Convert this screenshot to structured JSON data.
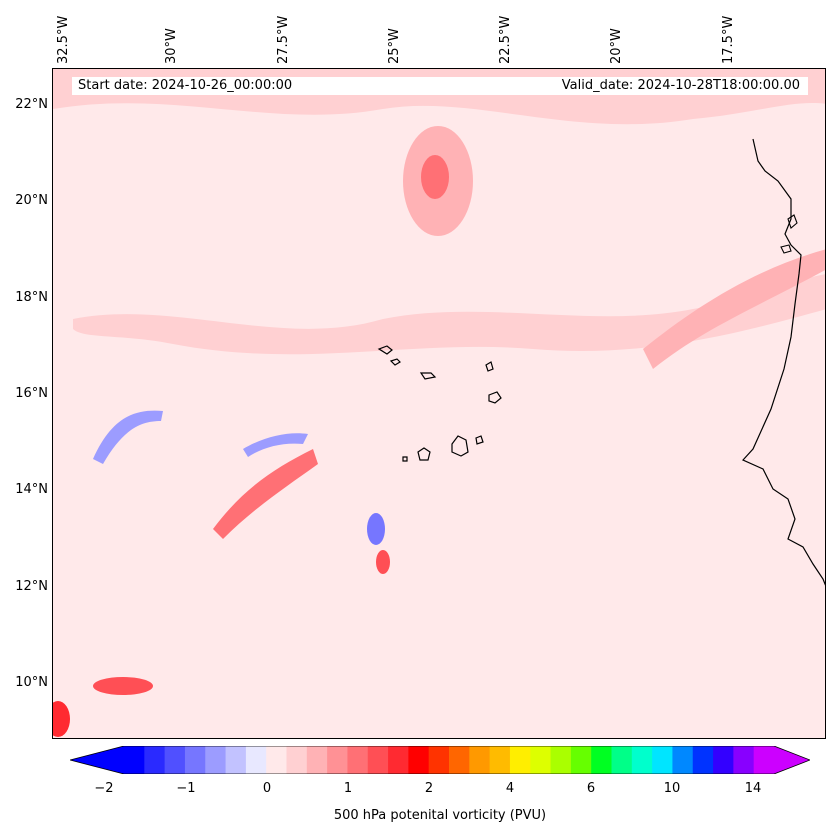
{
  "map": {
    "start_date_text": "Start date: 2024-10-26_00:00:00",
    "valid_date_text": "Valid_date: 2024-10-28T18:00:00.00",
    "longitude_labels": [
      "32.5°W",
      "30°W",
      "27.5°W",
      "25°W",
      "22.5°W",
      "20°W",
      "17.5°W"
    ],
    "latitude_labels": [
      "22°N",
      "20°N",
      "18°N",
      "16°N",
      "14°N",
      "12°N",
      "10°N"
    ],
    "background_color": "#ffe9ea"
  },
  "colorbar": {
    "label": "500 hPa potenital vorticity (PVU)",
    "tick_labels": [
      "−2",
      "−1",
      "0",
      "1",
      "2",
      "4",
      "6",
      "10",
      "14"
    ],
    "colors": [
      "#0000ff",
      "#2a2aff",
      "#5050ff",
      "#7676ff",
      "#9c9cff",
      "#c2c2ff",
      "#e8e8ff",
      "#ffe9ea",
      "#ffd0d2",
      "#ffb2b5",
      "#ff9195",
      "#ff7075",
      "#ff4f55",
      "#ff2a31",
      "#ff0000",
      "#ff3300",
      "#ff6600",
      "#ff9900",
      "#ffbb00",
      "#ffee00",
      "#ddff00",
      "#aaff00",
      "#66ff00",
      "#00ff22",
      "#00ff88",
      "#00ffcc",
      "#00e5ff",
      "#0088ff",
      "#0033ff",
      "#3300ff",
      "#8800ff",
      "#cc00ff"
    ],
    "under_color": "#0000ff",
    "over_color": "#cc00ff"
  }
}
